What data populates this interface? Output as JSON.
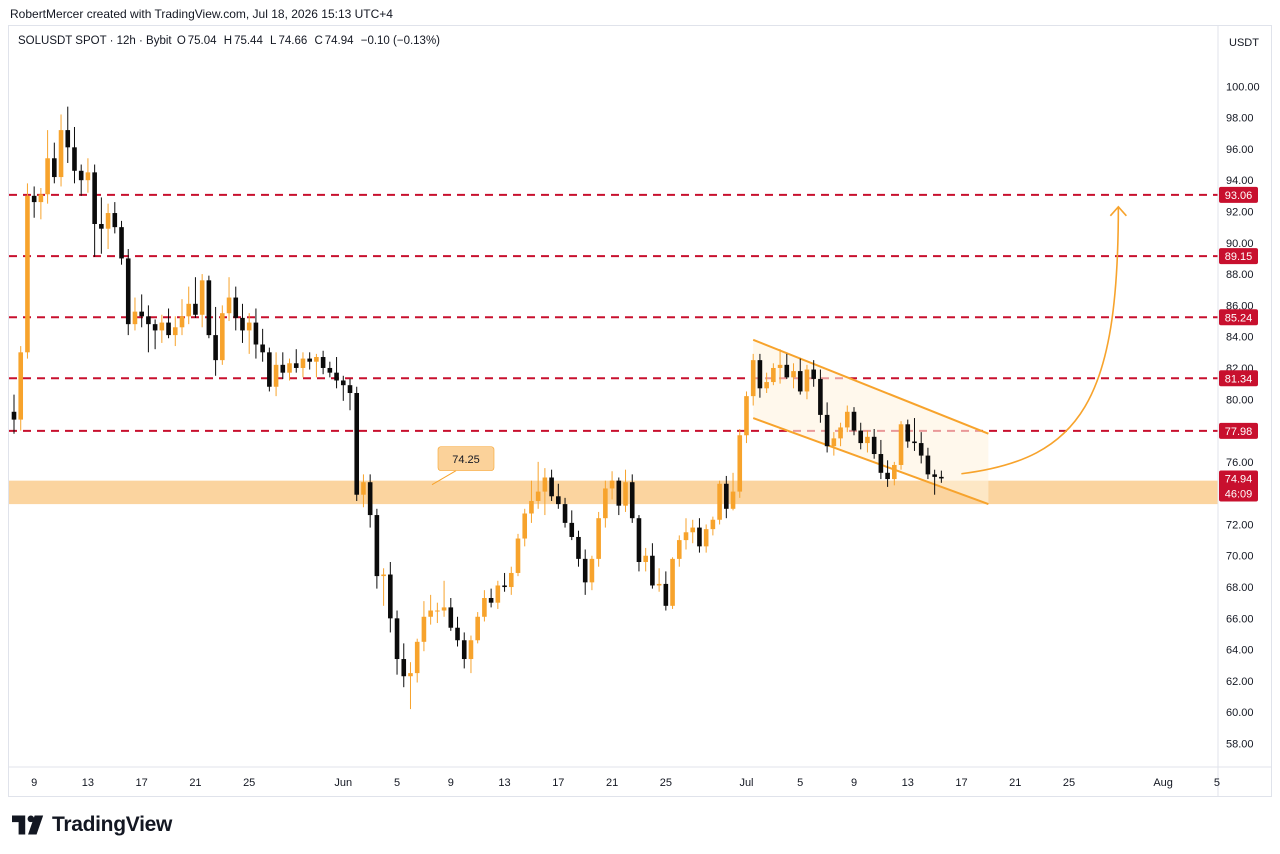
{
  "header": {
    "author_line": "RobertMercer created with TradingView.com, Jul 18, 2026 15:13 UTC+4"
  },
  "legend": {
    "symbol": "SOLUSDT SPOT · 12h · Bybit",
    "open_label": "O",
    "open": "75.04",
    "high_label": "H",
    "high": "75.44",
    "low_label": "L",
    "low": "74.66",
    "close_label": "C",
    "close": "74.94",
    "change": "−0.10 (−0.13%)"
  },
  "footer": {
    "brand": "TradingView"
  },
  "colors": {
    "up": "#f7a32c",
    "down": "#0b0b0b",
    "level": "#c8102e",
    "zone": "#fbd29a",
    "channel": "#f7a32c"
  },
  "chart_data": {
    "type": "candlestick",
    "currency_label": "USDT",
    "ylim": [
      56.5,
      102
    ],
    "y_ticks": [
      "58.00",
      "60.00",
      "62.00",
      "64.00",
      "66.00",
      "68.00",
      "70.00",
      "72.00",
      "74.00",
      "76.00",
      "78.00",
      "80.00",
      "82.00",
      "84.00",
      "86.00",
      "88.00",
      "90.00",
      "92.00",
      "94.00",
      "96.00",
      "98.00",
      "100.00"
    ],
    "x_ticks": [
      {
        "label": "9",
        "i": 3
      },
      {
        "label": "13",
        "i": 11
      },
      {
        "label": "17",
        "i": 19
      },
      {
        "label": "21",
        "i": 27
      },
      {
        "label": "25",
        "i": 35
      },
      {
        "label": "Jun",
        "i": 49
      },
      {
        "label": "5",
        "i": 57
      },
      {
        "label": "9",
        "i": 65
      },
      {
        "label": "13",
        "i": 73
      },
      {
        "label": "17",
        "i": 81
      },
      {
        "label": "21",
        "i": 89
      },
      {
        "label": "25",
        "i": 97
      },
      {
        "label": "Jul",
        "i": 109
      },
      {
        "label": "5",
        "i": 117
      },
      {
        "label": "9",
        "i": 125
      },
      {
        "label": "13",
        "i": 133
      },
      {
        "label": "17",
        "i": 141
      },
      {
        "label": "21",
        "i": 149
      },
      {
        "label": "25",
        "i": 157
      },
      {
        "label": "Aug",
        "i": 171
      },
      {
        "label": "5",
        "i": 179
      }
    ],
    "price_levels": [
      93.06,
      89.15,
      85.24,
      81.34,
      77.98
    ],
    "last_price": "74.94",
    "countdown": "46:09",
    "support_zone": [
      73.3,
      74.8
    ],
    "support_label": "74.25",
    "channel": {
      "upper": [
        {
          "i": 110,
          "p": 83.8
        },
        {
          "i": 145,
          "p": 77.8
        }
      ],
      "lower": [
        {
          "i": 110,
          "p": 78.8
        },
        {
          "i": 145,
          "p": 73.3
        }
      ]
    },
    "projection_target": 92.3,
    "candles": [
      [
        79.2,
        80.3,
        77.8,
        78.7
      ],
      [
        78.7,
        83.4,
        78.0,
        83.0
      ],
      [
        83.0,
        93.8,
        82.6,
        93.0
      ],
      [
        93.0,
        93.6,
        91.6,
        92.6
      ],
      [
        92.6,
        93.5,
        91.5,
        93.1
      ],
      [
        93.1,
        97.2,
        92.5,
        95.4
      ],
      [
        95.4,
        96.4,
        93.8,
        94.2
      ],
      [
        94.2,
        98.2,
        93.6,
        97.2
      ],
      [
        97.2,
        98.7,
        95.1,
        96.1
      ],
      [
        96.1,
        97.4,
        93.8,
        94.6
      ],
      [
        94.6,
        95.0,
        93.0,
        94.0
      ],
      [
        94.0,
        95.4,
        93.2,
        94.5
      ],
      [
        94.5,
        95.0,
        89.1,
        91.2
      ],
      [
        91.2,
        92.9,
        89.3,
        90.9
      ],
      [
        90.9,
        92.5,
        89.6,
        91.9
      ],
      [
        91.9,
        92.6,
        90.6,
        91.0
      ],
      [
        91.0,
        91.4,
        88.6,
        89.0
      ],
      [
        89.0,
        89.6,
        84.1,
        84.8
      ],
      [
        84.8,
        86.5,
        84.4,
        85.6
      ],
      [
        85.6,
        86.7,
        84.6,
        85.3
      ],
      [
        85.3,
        86.0,
        83.0,
        84.8
      ],
      [
        84.8,
        85.1,
        83.2,
        84.4
      ],
      [
        84.4,
        85.4,
        83.6,
        84.9
      ],
      [
        84.9,
        85.8,
        83.9,
        84.1
      ],
      [
        84.1,
        85.3,
        83.4,
        84.6
      ],
      [
        84.6,
        86.4,
        84.1,
        85.3
      ],
      [
        85.3,
        87.2,
        84.8,
        86.1
      ],
      [
        86.1,
        87.8,
        85.2,
        85.4
      ],
      [
        85.4,
        88.0,
        84.6,
        87.6
      ],
      [
        87.6,
        87.9,
        83.9,
        84.1
      ],
      [
        84.1,
        85.9,
        81.5,
        82.5
      ],
      [
        82.5,
        86.0,
        82.2,
        85.5
      ],
      [
        85.5,
        87.8,
        85.0,
        86.5
      ],
      [
        86.5,
        87.2,
        84.4,
        85.2
      ],
      [
        85.2,
        86.1,
        83.6,
        84.4
      ],
      [
        84.4,
        85.5,
        82.9,
        84.9
      ],
      [
        84.9,
        85.8,
        82.6,
        83.5
      ],
      [
        83.5,
        84.5,
        82.4,
        83.0
      ],
      [
        83.0,
        83.3,
        80.5,
        80.8
      ],
      [
        80.8,
        83.0,
        80.2,
        82.2
      ],
      [
        82.2,
        83.0,
        81.3,
        81.7
      ],
      [
        81.7,
        82.6,
        81.2,
        82.3
      ],
      [
        82.3,
        83.2,
        81.7,
        82.0
      ],
      [
        82.0,
        83.0,
        81.4,
        82.6
      ],
      [
        82.6,
        83.0,
        81.9,
        82.4
      ],
      [
        82.4,
        82.9,
        81.4,
        82.7
      ],
      [
        82.7,
        83.1,
        81.6,
        82.0
      ],
      [
        82.0,
        82.4,
        81.4,
        81.7
      ],
      [
        81.7,
        82.7,
        80.7,
        81.2
      ],
      [
        81.2,
        81.5,
        79.9,
        80.9
      ],
      [
        80.9,
        81.3,
        79.3,
        80.4
      ],
      [
        80.4,
        80.8,
        73.5,
        73.9
      ],
      [
        73.9,
        75.2,
        73.1,
        74.7
      ],
      [
        74.7,
        75.2,
        71.8,
        72.6
      ],
      [
        72.6,
        73.0,
        67.9,
        68.7
      ],
      [
        68.7,
        69.2,
        66.8,
        68.8
      ],
      [
        68.8,
        69.6,
        65.1,
        66.0
      ],
      [
        66.0,
        66.5,
        62.4,
        63.4
      ],
      [
        63.4,
        64.4,
        61.6,
        62.3
      ],
      [
        62.3,
        63.2,
        60.2,
        62.5
      ],
      [
        62.5,
        64.7,
        61.9,
        64.5
      ],
      [
        64.5,
        67.1,
        63.9,
        66.1
      ],
      [
        66.1,
        67.5,
        65.6,
        66.5
      ],
      [
        66.5,
        67.0,
        65.7,
        66.5
      ],
      [
        66.5,
        68.4,
        66.1,
        66.7
      ],
      [
        66.7,
        67.3,
        65.2,
        65.4
      ],
      [
        65.4,
        66.1,
        64.2,
        64.6
      ],
      [
        64.6,
        65.1,
        62.8,
        63.4
      ],
      [
        63.4,
        64.9,
        62.5,
        64.6
      ],
      [
        64.6,
        66.4,
        64.4,
        66.1
      ],
      [
        66.1,
        67.8,
        65.8,
        67.3
      ],
      [
        67.3,
        67.9,
        66.7,
        67.0
      ],
      [
        67.0,
        68.4,
        66.6,
        68.1
      ],
      [
        68.1,
        68.9,
        67.7,
        68.0
      ],
      [
        68.0,
        69.3,
        67.5,
        68.9
      ],
      [
        68.9,
        71.4,
        68.7,
        71.1
      ],
      [
        71.1,
        73.0,
        70.6,
        72.7
      ],
      [
        72.7,
        74.8,
        72.1,
        73.5
      ],
      [
        73.5,
        76.0,
        73.0,
        74.1
      ],
      [
        74.1,
        75.6,
        72.6,
        75.0
      ],
      [
        75.0,
        75.5,
        73.5,
        73.8
      ],
      [
        73.8,
        74.6,
        73.0,
        73.3
      ],
      [
        73.3,
        73.7,
        71.8,
        72.1
      ],
      [
        72.1,
        72.9,
        71.0,
        71.2
      ],
      [
        71.2,
        71.6,
        69.3,
        69.8
      ],
      [
        69.8,
        70.4,
        67.5,
        68.3
      ],
      [
        68.3,
        70.0,
        67.8,
        69.8
      ],
      [
        69.8,
        72.8,
        69.3,
        72.4
      ],
      [
        72.4,
        74.8,
        71.8,
        74.3
      ],
      [
        74.3,
        75.4,
        73.6,
        74.8
      ],
      [
        74.8,
        75.0,
        72.6,
        73.2
      ],
      [
        73.2,
        75.5,
        72.8,
        74.7
      ],
      [
        74.7,
        75.2,
        72.1,
        72.4
      ],
      [
        72.4,
        72.6,
        69.0,
        69.6
      ],
      [
        69.6,
        70.5,
        69.0,
        70.0
      ],
      [
        70.0,
        70.8,
        67.9,
        68.1
      ],
      [
        68.1,
        69.2,
        67.7,
        68.2
      ],
      [
        68.2,
        69.0,
        66.5,
        66.8
      ],
      [
        66.8,
        69.9,
        66.6,
        69.8
      ],
      [
        69.8,
        71.3,
        69.3,
        71.0
      ],
      [
        71.0,
        72.4,
        70.4,
        71.5
      ],
      [
        71.5,
        72.3,
        70.8,
        71.8
      ],
      [
        71.8,
        72.4,
        70.2,
        70.6
      ],
      [
        70.6,
        72.0,
        70.2,
        71.7
      ],
      [
        71.7,
        72.5,
        71.3,
        72.3
      ],
      [
        72.3,
        74.8,
        72.0,
        74.6
      ],
      [
        74.6,
        75.1,
        72.4,
        73.0
      ],
      [
        73.0,
        75.3,
        72.9,
        74.1
      ],
      [
        74.1,
        78.1,
        73.7,
        77.7
      ],
      [
        77.7,
        80.5,
        77.2,
        80.2
      ],
      [
        80.2,
        82.9,
        79.6,
        82.5
      ],
      [
        82.5,
        82.9,
        80.1,
        80.7
      ],
      [
        80.7,
        81.7,
        80.4,
        81.1
      ],
      [
        81.1,
        82.3,
        80.9,
        82.0
      ],
      [
        82.0,
        83.2,
        81.0,
        82.2
      ],
      [
        82.2,
        82.9,
        81.3,
        81.4
      ],
      [
        81.4,
        82.3,
        80.7,
        81.8
      ],
      [
        81.8,
        82.6,
        80.3,
        80.5
      ],
      [
        80.5,
        82.2,
        80.0,
        81.9
      ],
      [
        81.9,
        82.5,
        80.8,
        81.3
      ],
      [
        81.3,
        81.9,
        78.5,
        79.0
      ],
      [
        79.0,
        79.8,
        76.6,
        77.0
      ],
      [
        77.0,
        77.9,
        76.4,
        77.5
      ],
      [
        77.5,
        78.5,
        77.0,
        78.2
      ],
      [
        78.2,
        79.6,
        77.9,
        79.2
      ],
      [
        79.2,
        79.5,
        77.7,
        78.0
      ],
      [
        78.0,
        78.5,
        76.8,
        77.2
      ],
      [
        77.2,
        78.0,
        76.6,
        77.6
      ],
      [
        77.6,
        78.1,
        76.2,
        76.5
      ],
      [
        76.5,
        77.4,
        74.9,
        75.3
      ],
      [
        75.3,
        76.1,
        74.4,
        74.9
      ],
      [
        74.9,
        76.0,
        74.5,
        75.8
      ],
      [
        75.8,
        78.6,
        75.5,
        78.4
      ],
      [
        78.4,
        78.7,
        76.9,
        77.3
      ],
      [
        77.3,
        78.8,
        76.7,
        77.2
      ],
      [
        77.2,
        77.9,
        75.9,
        76.4
      ],
      [
        76.4,
        76.9,
        74.9,
        75.2
      ],
      [
        75.2,
        75.5,
        73.9,
        75.04
      ],
      [
        75.04,
        75.44,
        74.66,
        74.94
      ]
    ]
  }
}
